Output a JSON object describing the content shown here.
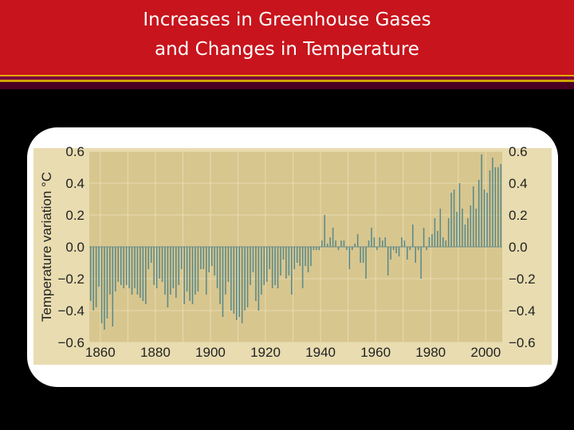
{
  "header": {
    "title_line1": "Increases in Greenhouse Gases",
    "title_line2": "and Changes in Temperature"
  },
  "colors": {
    "header_red": "#c8141c",
    "accent_gold": "#d0a400",
    "plot_background": "#d8c68f",
    "bar_color": "#5a8a8a"
  },
  "chart_data": {
    "type": "bar",
    "title": "",
    "xlabel": "",
    "ylabel": "Temperature variation °C",
    "xlim": [
      1856,
      2006
    ],
    "ylim": [
      -0.6,
      0.6
    ],
    "x_ticks": [
      "1860",
      "1880",
      "1900",
      "1920",
      "1940",
      "1960",
      "1980",
      "2000"
    ],
    "y_ticks_left": [
      "0.6",
      "0.4",
      "0.2",
      "0.0",
      "−0.2",
      "−0.4",
      "−0.6"
    ],
    "y_ticks_right": [
      "0.6",
      "0.4",
      "0.2",
      "0.0",
      "−0.2",
      "−0.4",
      "−0.6"
    ],
    "grid": true,
    "series": [
      {
        "x": [
          1856,
          1857,
          1858,
          1859,
          1860,
          1861,
          1862,
          1863,
          1864,
          1865,
          1866,
          1867,
          1868,
          1869,
          1870,
          1871,
          1872,
          1873,
          1874,
          1875,
          1876,
          1877,
          1878,
          1879,
          1880,
          1881,
          1882,
          1883,
          1884,
          1885,
          1886,
          1887,
          1888,
          1889,
          1890,
          1891,
          1892,
          1893,
          1894,
          1895,
          1896,
          1897,
          1898,
          1899,
          1900,
          1901,
          1902,
          1903,
          1904,
          1905,
          1906,
          1907,
          1908,
          1909,
          1910,
          1911,
          1912,
          1913,
          1914,
          1915,
          1916,
          1917,
          1918,
          1919,
          1920,
          1921,
          1922,
          1923,
          1924,
          1925,
          1926,
          1927,
          1928,
          1929,
          1930,
          1931,
          1932,
          1933,
          1934,
          1935,
          1936,
          1937,
          1938,
          1939,
          1940,
          1941,
          1942,
          1943,
          1944,
          1945,
          1946,
          1947,
          1948,
          1949,
          1950,
          1951,
          1952,
          1953,
          1954,
          1955,
          1956,
          1957,
          1958,
          1959,
          1960,
          1961,
          1962,
          1963,
          1964,
          1965,
          1966,
          1967,
          1968,
          1969,
          1970,
          1971,
          1972,
          1973,
          1974,
          1975,
          1976,
          1977,
          1978,
          1979,
          1980,
          1981,
          1982,
          1983,
          1984,
          1985,
          1986,
          1987,
          1988,
          1989,
          1990,
          1991,
          1992,
          1993,
          1994,
          1995,
          1996,
          1997,
          1998,
          1999,
          2000,
          2001,
          2002,
          2003,
          2004,
          2005
        ],
        "values": [
          -0.34,
          -0.4,
          -0.38,
          -0.25,
          -0.48,
          -0.52,
          -0.45,
          -0.3,
          -0.5,
          -0.28,
          -0.22,
          -0.24,
          -0.26,
          -0.24,
          -0.26,
          -0.3,
          -0.26,
          -0.3,
          -0.32,
          -0.34,
          -0.36,
          -0.14,
          -0.1,
          -0.24,
          -0.26,
          -0.2,
          -0.22,
          -0.3,
          -0.38,
          -0.3,
          -0.26,
          -0.32,
          -0.24,
          -0.14,
          -0.36,
          -0.28,
          -0.34,
          -0.36,
          -0.3,
          -0.28,
          -0.14,
          -0.14,
          -0.3,
          -0.16,
          -0.12,
          -0.18,
          -0.26,
          -0.36,
          -0.44,
          -0.3,
          -0.22,
          -0.4,
          -0.42,
          -0.46,
          -0.44,
          -0.48,
          -0.4,
          -0.38,
          -0.24,
          -0.16,
          -0.34,
          -0.4,
          -0.3,
          -0.24,
          -0.22,
          -0.14,
          -0.26,
          -0.24,
          -0.26,
          -0.18,
          -0.08,
          -0.2,
          -0.18,
          -0.3,
          -0.14,
          -0.1,
          -0.12,
          -0.26,
          -0.12,
          -0.16,
          -0.12,
          -0.02,
          -0.02,
          -0.02,
          0.04,
          0.2,
          0.02,
          0.06,
          0.12,
          0.04,
          -0.02,
          0.04,
          0.04,
          -0.02,
          -0.14,
          -0.02,
          0.02,
          0.08,
          -0.1,
          -0.1,
          -0.2,
          0.04,
          0.12,
          0.06,
          -0.02,
          0.06,
          0.04,
          0.06,
          -0.18,
          -0.08,
          -0.02,
          -0.04,
          -0.06,
          0.06,
          0.04,
          -0.08,
          -0.02,
          0.14,
          -0.1,
          -0.02,
          -0.2,
          0.12,
          -0.02,
          0.06,
          0.08,
          0.18,
          0.1,
          0.24,
          0.06,
          0.04,
          0.18,
          0.34,
          0.36,
          0.22,
          0.4,
          0.24,
          0.14,
          0.18,
          0.26,
          0.38,
          0.24,
          0.42,
          0.58,
          0.36,
          0.34,
          0.48,
          0.56,
          0.5,
          0.5,
          0.52
        ]
      }
    ]
  }
}
